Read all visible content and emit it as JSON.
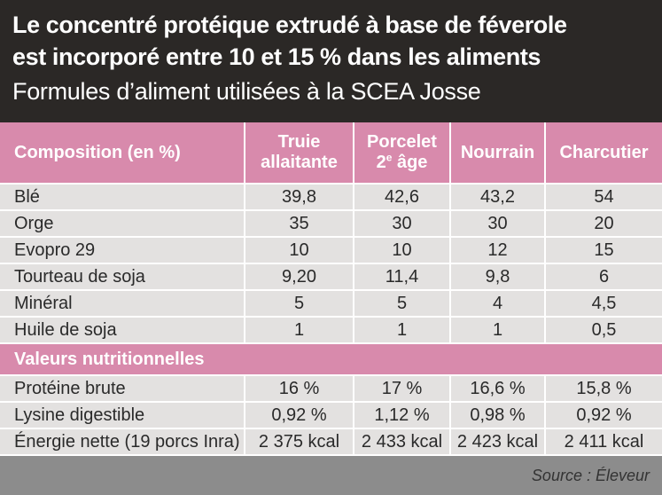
{
  "header": {
    "title_line1": "Le concentré protéique extrudé à base de féverole",
    "title_line2": "est incorporé entre 10 et 15 % dans les aliments",
    "subtitle": "Formules d’aliment utilisées à la SCEA Josse"
  },
  "table": {
    "column_header": "Composition (en %)",
    "columns": [
      {
        "line1": "Truie",
        "line2": "allaitante"
      },
      {
        "line1": "Porcelet",
        "line2_main": "2",
        "line2_sup": "e",
        "line2_rest": " âge"
      },
      {
        "line1": "Nourrain"
      },
      {
        "line1": "Charcutier"
      }
    ],
    "composition_rows": [
      {
        "label": "Blé",
        "values": [
          "39,8",
          "42,6",
          "43,2",
          "54"
        ]
      },
      {
        "label": "Orge",
        "values": [
          "35",
          "30",
          "30",
          "20"
        ]
      },
      {
        "label": "Evopro 29",
        "values": [
          "10",
          "10",
          "12",
          "15"
        ]
      },
      {
        "label": "Tourteau de soja",
        "values": [
          "9,20",
          "11,4",
          "9,8",
          "6"
        ]
      },
      {
        "label": "Minéral",
        "values": [
          "5",
          "5",
          "4",
          "4,5"
        ]
      },
      {
        "label": "Huile de soja",
        "values": [
          "1",
          "1",
          "1",
          "0,5"
        ]
      }
    ],
    "section_title": "Valeurs nutritionnelles",
    "nutrition_rows": [
      {
        "label": "Protéine brute",
        "values": [
          "16 %",
          "17 %",
          "16,6 %",
          "15,8 %"
        ]
      },
      {
        "label": "Lysine digestible",
        "values": [
          "0,92 %",
          "1,12 %",
          "0,98 %",
          "0,92 %"
        ]
      },
      {
        "label": "Énergie nette (19 porcs Inra)",
        "values": [
          "2 375 kcal",
          "2 433 kcal",
          "2 423 kcal",
          "2 411 kcal"
        ]
      }
    ]
  },
  "footer": {
    "source": "Source : Éleveur"
  }
}
